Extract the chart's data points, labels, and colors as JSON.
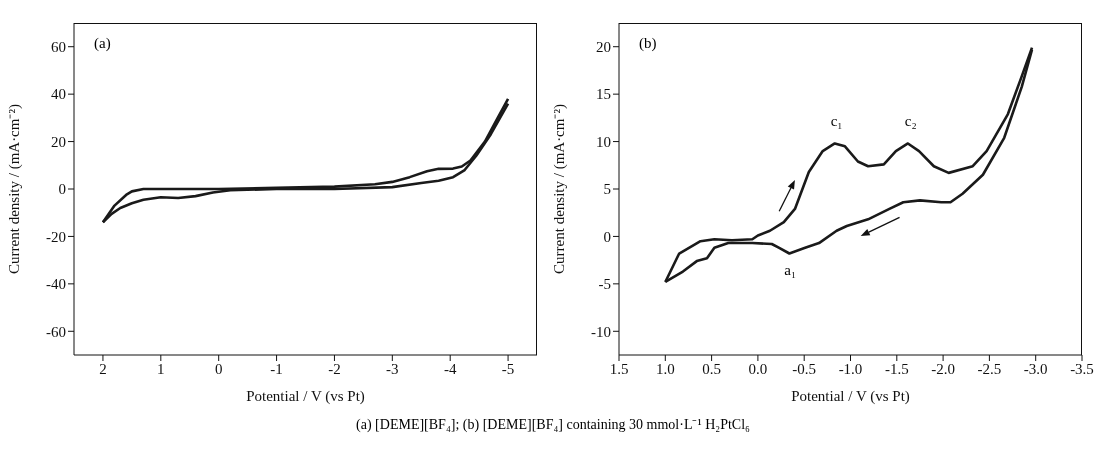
{
  "chart_data": [
    {
      "type": "line",
      "title": "(a)",
      "xlabel": "Potential / V (vs Pt)",
      "ylabel": "Current density / (mA·cm⁻²)",
      "xlim": [
        2.5,
        -5.5
      ],
      "ylim": [
        -70,
        70
      ],
      "xticks": [
        2,
        1,
        0,
        -1,
        -2,
        -3,
        -4,
        -5
      ],
      "yticks": [
        -60,
        -40,
        -20,
        0,
        20,
        40,
        60
      ],
      "series": [
        {
          "color": "#1a1a1a",
          "x": [
            2,
            1.8,
            1.6,
            1.5,
            1.3,
            1,
            0.5,
            0,
            -1,
            -2,
            -2.7,
            -3,
            -3.3,
            -3.6,
            -3.8,
            -4.05,
            -4.2,
            -4.35,
            -4.6,
            -4.8,
            -5
          ],
          "values": [
            -14,
            -7,
            -2.5,
            -1,
            0,
            0,
            0,
            0,
            0.5,
            1,
            2,
            3,
            5,
            7.5,
            8.5,
            8.6,
            9.5,
            12,
            20,
            29,
            38
          ]
        },
        {
          "color": "#1a1a1a",
          "x": [
            -5,
            -4.7,
            -4.45,
            -4.25,
            -4.05,
            -3.8,
            -3.5,
            -3,
            -2,
            -1,
            -0.2,
            0.1,
            0.4,
            0.7,
            1,
            1.3,
            1.5,
            1.7,
            1.85,
            2
          ],
          "values": [
            36,
            23,
            14,
            8,
            5,
            3.5,
            2.5,
            0.8,
            0,
            0,
            -0.5,
            -1.5,
            -3,
            -3.8,
            -3.5,
            -4.5,
            -6,
            -8,
            -10.5,
            -14
          ]
        }
      ],
      "annotations": [
        "(a) [DEME][BF₄]; (b) [DEME][BF₄] containing 30 mmol·L⁻¹ H₂PtCl₆"
      ]
    },
    {
      "type": "line",
      "title": "(b)",
      "xlabel": "Potential / V (vs Pt)",
      "ylabel": "Current density / (mA·cm⁻²)",
      "xlim": [
        1.5,
        -3.5
      ],
      "ylim": [
        -12.5,
        22.5
      ],
      "xticks": [
        {
          "value": 1.5,
          "label": "1.5"
        },
        {
          "value": 1,
          "label": "1.0"
        },
        {
          "value": 0.5,
          "label": "0.5"
        },
        {
          "value": 0,
          "label": "0.0"
        },
        {
          "value": -0.5,
          "label": "-0.5"
        },
        {
          "value": -1,
          "label": "-1.0"
        },
        {
          "value": -1.5,
          "label": "-1.5"
        },
        {
          "value": -2,
          "label": "-2.0"
        },
        {
          "value": -2.5,
          "label": "-2.5"
        },
        {
          "value": -3,
          "label": "-3.0"
        },
        {
          "value": -3.5,
          "label": "-3.5"
        }
      ],
      "yticks": [
        -10,
        -5,
        0,
        5,
        10,
        15,
        20
      ],
      "series": [
        {
          "color": "#1a1a1a",
          "x": [
            1,
            0.85,
            0.62,
            0.47,
            0.28,
            0.06,
            0,
            -0.13,
            -0.28,
            -0.4,
            -0.55,
            -0.7,
            -0.83,
            -0.94,
            -1.08,
            -1.19,
            -1.36,
            -1.49,
            -1.62,
            -1.74,
            -1.9,
            -2.06,
            -2.32,
            -2.47,
            -2.7,
            -2.85,
            -2.96
          ],
          "values": [
            -4.8,
            -1.8,
            -0.5,
            -0.3,
            -0.4,
            -0.3,
            0.1,
            0.6,
            1.5,
            2.9,
            6.8,
            9,
            9.8,
            9.5,
            7.9,
            7.4,
            7.6,
            9,
            9.8,
            9,
            7.4,
            6.7,
            7.4,
            9,
            12.9,
            16.9,
            19.9
          ]
        },
        {
          "color": "#1a1a1a",
          "x": [
            -2.96,
            -2.85,
            -2.66,
            -2.43,
            -2.21,
            -2.08,
            -1.98,
            -1.75,
            -1.57,
            -1.42,
            -1.19,
            -0.96,
            -0.85,
            -0.66,
            -0.51,
            -0.34,
            -0.23,
            -0.15,
            0.06,
            0.32,
            0.47,
            0.55,
            0.66,
            0.81,
            1
          ],
          "values": [
            19.7,
            15.8,
            10.4,
            6.5,
            4.5,
            3.6,
            3.6,
            3.8,
            3.6,
            2.9,
            1.8,
            1.1,
            0.6,
            -0.7,
            -1.2,
            -1.8,
            -1.2,
            -0.8,
            -0.7,
            -0.7,
            -1.2,
            -2.3,
            -2.6,
            -3.7,
            -4.8
          ]
        }
      ],
      "annotations": [
        {
          "text": "c₁",
          "x": -0.85,
          "y": 9.8
        },
        {
          "text": "c₂",
          "x": -1.65,
          "y": 9.8
        },
        {
          "text": "a₁",
          "x": -0.35,
          "y": -1.8
        }
      ]
    }
  ]
}
